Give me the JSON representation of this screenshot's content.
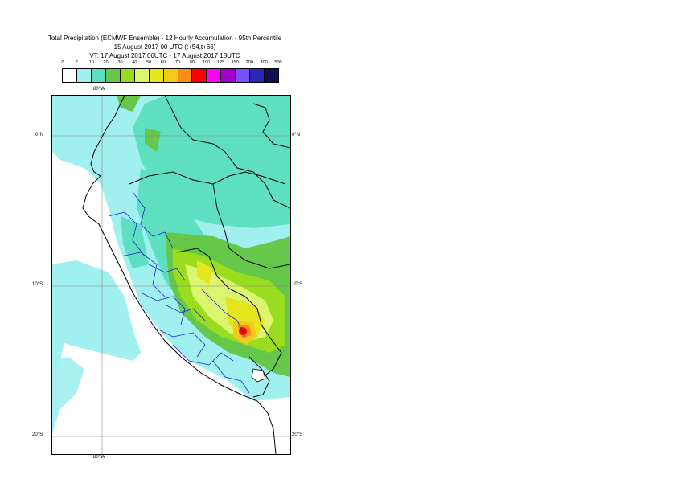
{
  "title": {
    "line1": "Total Precipitation (ECMWF Ensemble) - 12 Hourly Accumulation - 95th Percentile",
    "line2": "15 August 2017 00 UTC (t+54,t+66)",
    "line3": "VT: 17 August 2017 06UTC - 17 August 2017 18UTC"
  },
  "legend": {
    "labels": [
      "0",
      "1",
      "10",
      "20",
      "30",
      "40",
      "50",
      "60",
      "70",
      "80",
      "100",
      "125",
      "150",
      "200",
      "300",
      "500"
    ],
    "colors": [
      "#ffffff",
      "#9ff0ee",
      "#5ee0c0",
      "#66c84a",
      "#9adc1e",
      "#dcf56e",
      "#e6e61e",
      "#f5c81e",
      "#ff8c14",
      "#ff0000",
      "#ff00ff",
      "#a000c8",
      "#7850ff",
      "#2828b4",
      "#101050"
    ]
  },
  "axes": {
    "top_lon": "80°W",
    "bottom_lon": "80°W",
    "lat_left": [
      "0°N",
      "10°S",
      "20°S"
    ],
    "lat_right": [
      "0°N",
      "10°S",
      "20°S"
    ]
  }
}
